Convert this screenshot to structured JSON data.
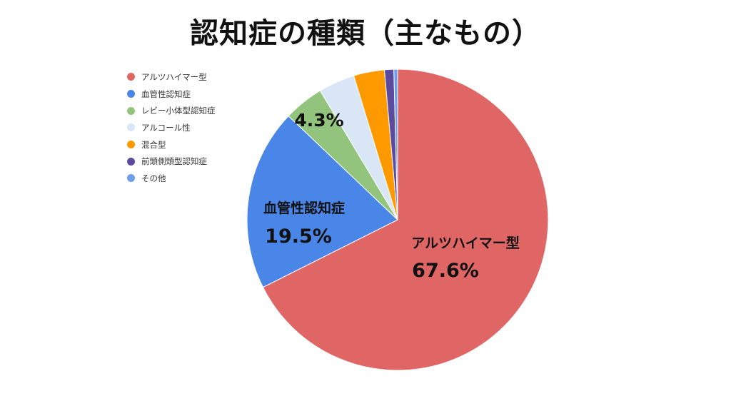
{
  "chart_data": {
    "type": "pie",
    "title": "認知症の種類（主なもの）",
    "legend_position": "top-left",
    "slices": [
      {
        "label": "アルツハイマー型",
        "value": 67.6,
        "color": "#e06666",
        "value_label": "67.6%",
        "name_label": "アルツハイマー型"
      },
      {
        "label": "血管性認知症",
        "value": 19.5,
        "color": "#4a86e8",
        "value_label": "19.5%",
        "name_label": "血管性認知症"
      },
      {
        "label": "レビー小体型認知症",
        "value": 4.3,
        "color": "#93c47d",
        "value_label": "4.3%",
        "name_label": ""
      },
      {
        "label": "アルコール性",
        "value": 3.9,
        "color": "#d9e6f5",
        "value_label": "",
        "name_label": ""
      },
      {
        "label": "混合型",
        "value": 3.3,
        "color": "#ff9900",
        "value_label": "",
        "name_label": ""
      },
      {
        "label": "前頭側頭型認知症",
        "value": 1.0,
        "color": "#5b4a9e",
        "value_label": "",
        "name_label": ""
      },
      {
        "label": "その他",
        "value": 0.4,
        "color": "#6d9eeb",
        "value_label": "",
        "name_label": ""
      }
    ]
  }
}
